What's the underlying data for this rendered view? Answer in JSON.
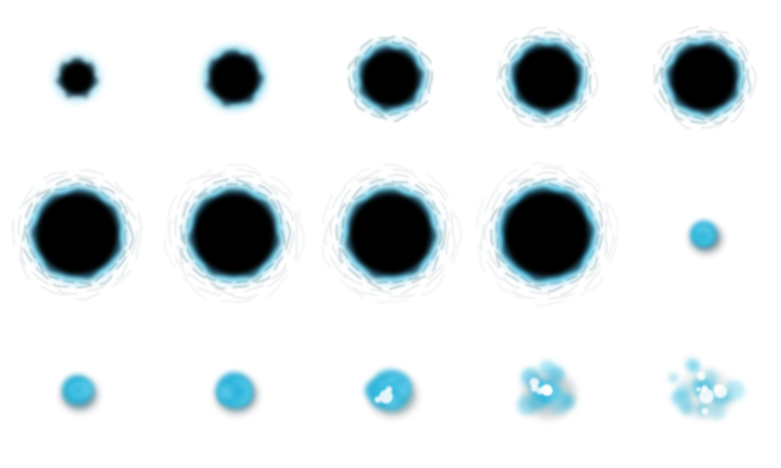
{
  "sprite_sheet": {
    "background_color": "#ffffff",
    "palette": {
      "core": "#000000",
      "glow": "#2ab4dc",
      "glow_light": "#5ccbe8",
      "ring": "#1a3a4a"
    },
    "rows": 3,
    "columns": 5,
    "frame_count": 15,
    "frames": [
      {
        "frame": 1,
        "kind": "portal",
        "growth": 0.35,
        "rings": 0,
        "glow": 0.5
      },
      {
        "frame": 2,
        "kind": "portal",
        "growth": 0.5,
        "rings": 0,
        "glow": 0.8
      },
      {
        "frame": 3,
        "kind": "portal",
        "growth": 0.58,
        "rings": 2,
        "glow": 1.0
      },
      {
        "frame": 4,
        "kind": "portal",
        "growth": 0.64,
        "rings": 3,
        "glow": 1.0
      },
      {
        "frame": 5,
        "kind": "portal",
        "growth": 0.66,
        "rings": 3,
        "glow": 1.0
      },
      {
        "frame": 6,
        "kind": "portal",
        "growth": 0.82,
        "rings": 4,
        "glow": 1.0
      },
      {
        "frame": 7,
        "kind": "portal",
        "growth": 0.82,
        "rings": 5,
        "glow": 1.0
      },
      {
        "frame": 8,
        "kind": "portal",
        "growth": 0.82,
        "rings": 5,
        "glow": 1.0
      },
      {
        "frame": 9,
        "kind": "portal",
        "growth": 0.85,
        "rings": 5,
        "glow": 1.2
      },
      {
        "frame": 10,
        "kind": "dissipate",
        "growth": 0.3,
        "scatter": 0.0,
        "fade": 1.0
      },
      {
        "frame": 11,
        "kind": "dissipate",
        "growth": 0.34,
        "scatter": 0.1,
        "fade": 1.0
      },
      {
        "frame": 12,
        "kind": "dissipate",
        "growth": 0.4,
        "scatter": 0.25,
        "fade": 1.0
      },
      {
        "frame": 13,
        "kind": "dissipate",
        "growth": 0.46,
        "scatter": 0.4,
        "fade": 0.9
      },
      {
        "frame": 14,
        "kind": "dissipate",
        "growth": 0.52,
        "scatter": 0.7,
        "fade": 0.7
      },
      {
        "frame": 15,
        "kind": "dissipate",
        "growth": 0.54,
        "scatter": 1.0,
        "fade": 0.5
      }
    ]
  }
}
